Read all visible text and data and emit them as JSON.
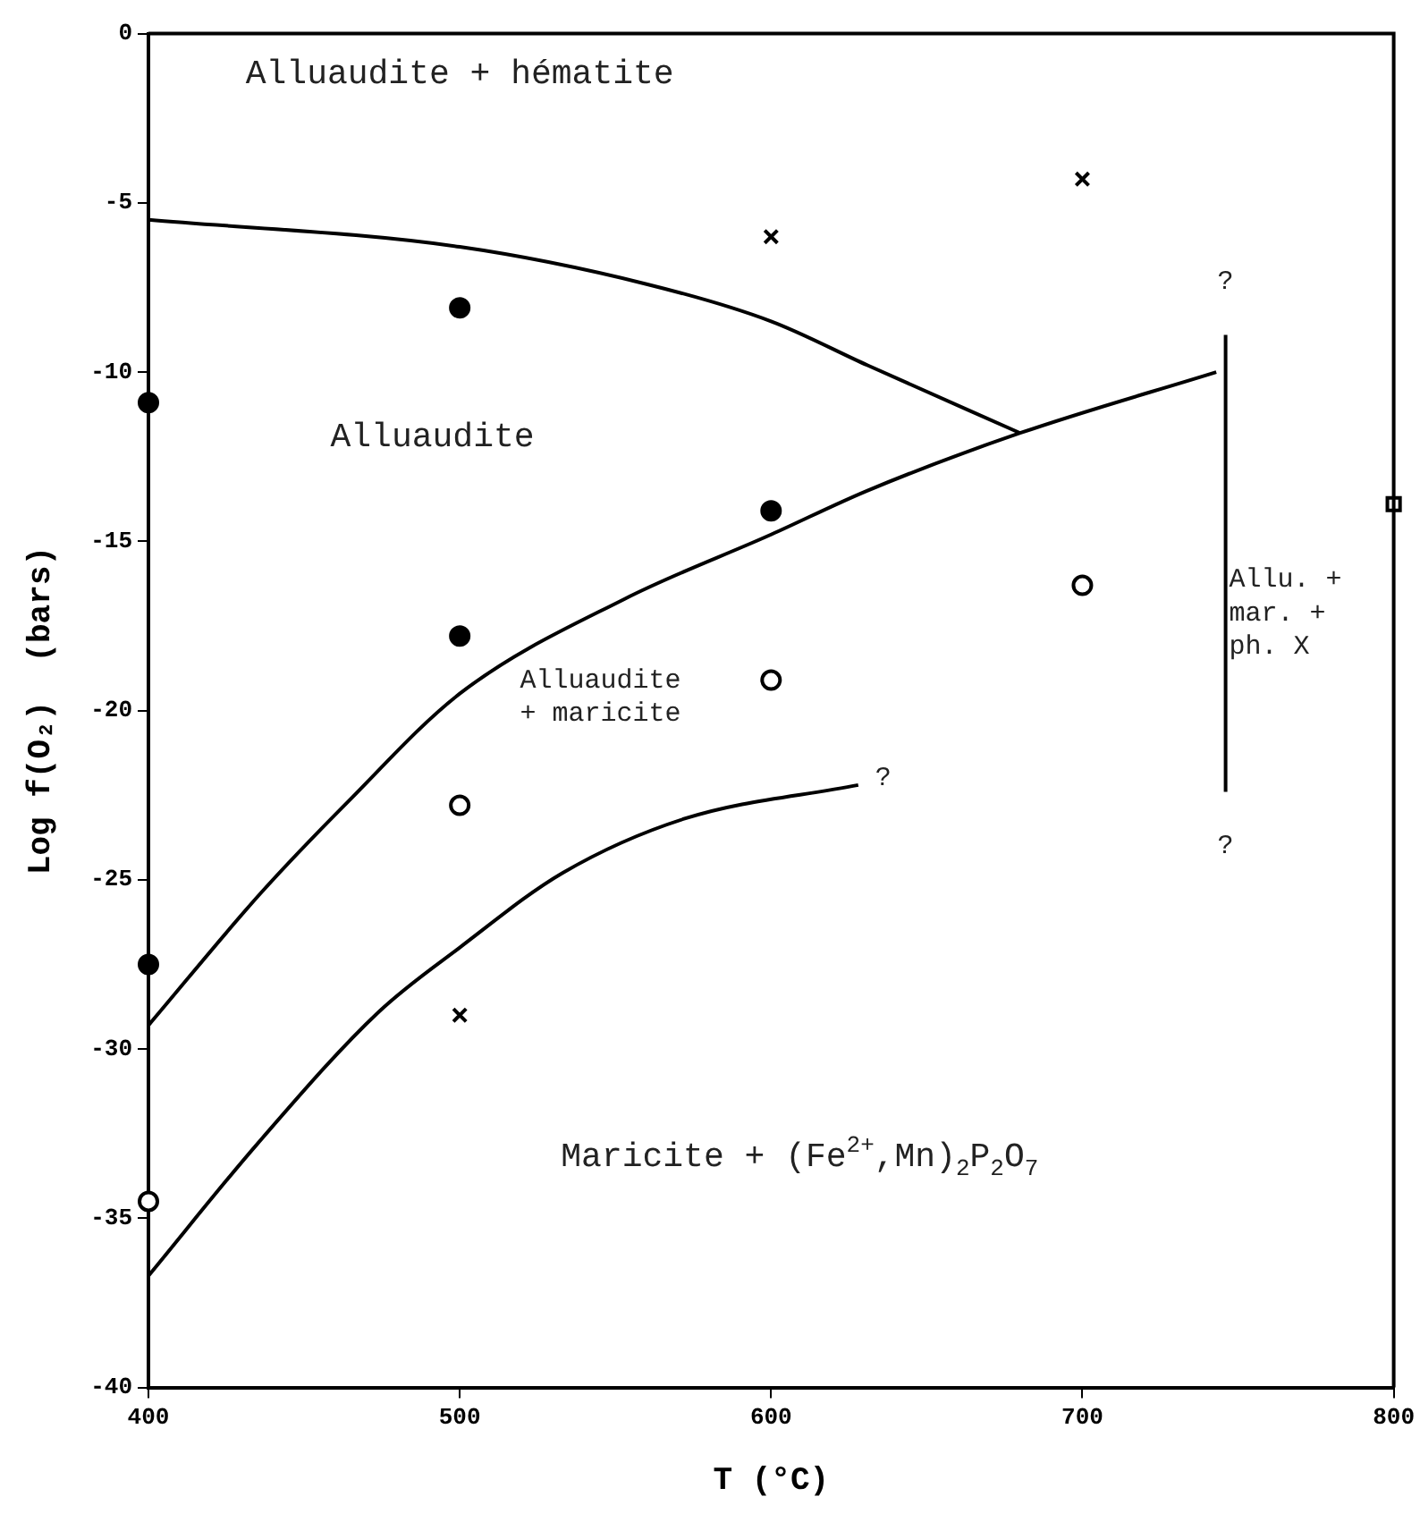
{
  "chart_data": {
    "type": "scatter",
    "xlabel": "T (°C)",
    "ylabel": "Log f(O₂)  (bars)",
    "xlim": [
      400,
      800
    ],
    "xticks": [
      400,
      500,
      600,
      700,
      800
    ],
    "ylim": [
      -40,
      0
    ],
    "yticks": [
      -40,
      -35,
      -30,
      -25,
      -20,
      -15,
      -10,
      -5,
      0
    ],
    "grid": false,
    "legend": false,
    "series": [
      {
        "type": "line",
        "color": "#000000",
        "marker": "none",
        "x": [
          400,
          500,
          560,
          600,
          631,
          680
        ],
        "values": [
          -5.5,
          -6.3,
          -7.4,
          -8.5,
          -9.8,
          -11.8
        ]
      },
      {
        "type": "line",
        "color": "#000000",
        "marker": "none",
        "x": [
          400,
          436,
          464,
          500,
          553,
          600,
          631,
          680,
          743
        ],
        "values": [
          -29.3,
          -25.4,
          -22.7,
          -19.5,
          -16.7,
          -14.8,
          -13.5,
          -11.8,
          -10.0
        ]
      },
      {
        "type": "line",
        "color": "#000000",
        "marker": "none",
        "x": [
          400,
          435,
          474,
          500,
          533,
          572,
          628
        ],
        "values": [
          -36.7,
          -32.8,
          -28.9,
          -27.0,
          -24.8,
          -23.2,
          -22.2
        ]
      },
      {
        "type": "line",
        "color": "#000000",
        "marker": "none",
        "x": [
          746,
          746
        ],
        "values": [
          -8.9,
          -22.4
        ]
      },
      {
        "color": "#000000",
        "marker": "circle",
        "x": [
          400,
          500,
          600,
          500,
          400
        ],
        "values": [
          -10.9,
          -8.1,
          -14.1,
          -17.8,
          -27.5
        ]
      },
      {
        "color": "#ffffff",
        "marker": "circle",
        "x": [
          500,
          600,
          700,
          400
        ],
        "values": [
          -22.8,
          -19.1,
          -16.3,
          -34.5
        ]
      },
      {
        "color": "#000000",
        "marker": "cross",
        "x": [
          600,
          700,
          500
        ],
        "values": [
          -6.0,
          -4.3,
          -29.0
        ]
      },
      {
        "color": "#ffffff",
        "marker": "square",
        "x": [
          800
        ],
        "values": [
          -13.9
        ]
      }
    ],
    "annotations": [
      "Alluaudite + hématite",
      "Alluaudite",
      "Alluaudite\n+ maricite",
      "Maricite + (Fe$^{2+}$,Mn)$_{2}$P$_{2}$O$_{7}$",
      "Allu. +\nmar. +\nph. X",
      "?",
      "?",
      "?"
    ]
  }
}
